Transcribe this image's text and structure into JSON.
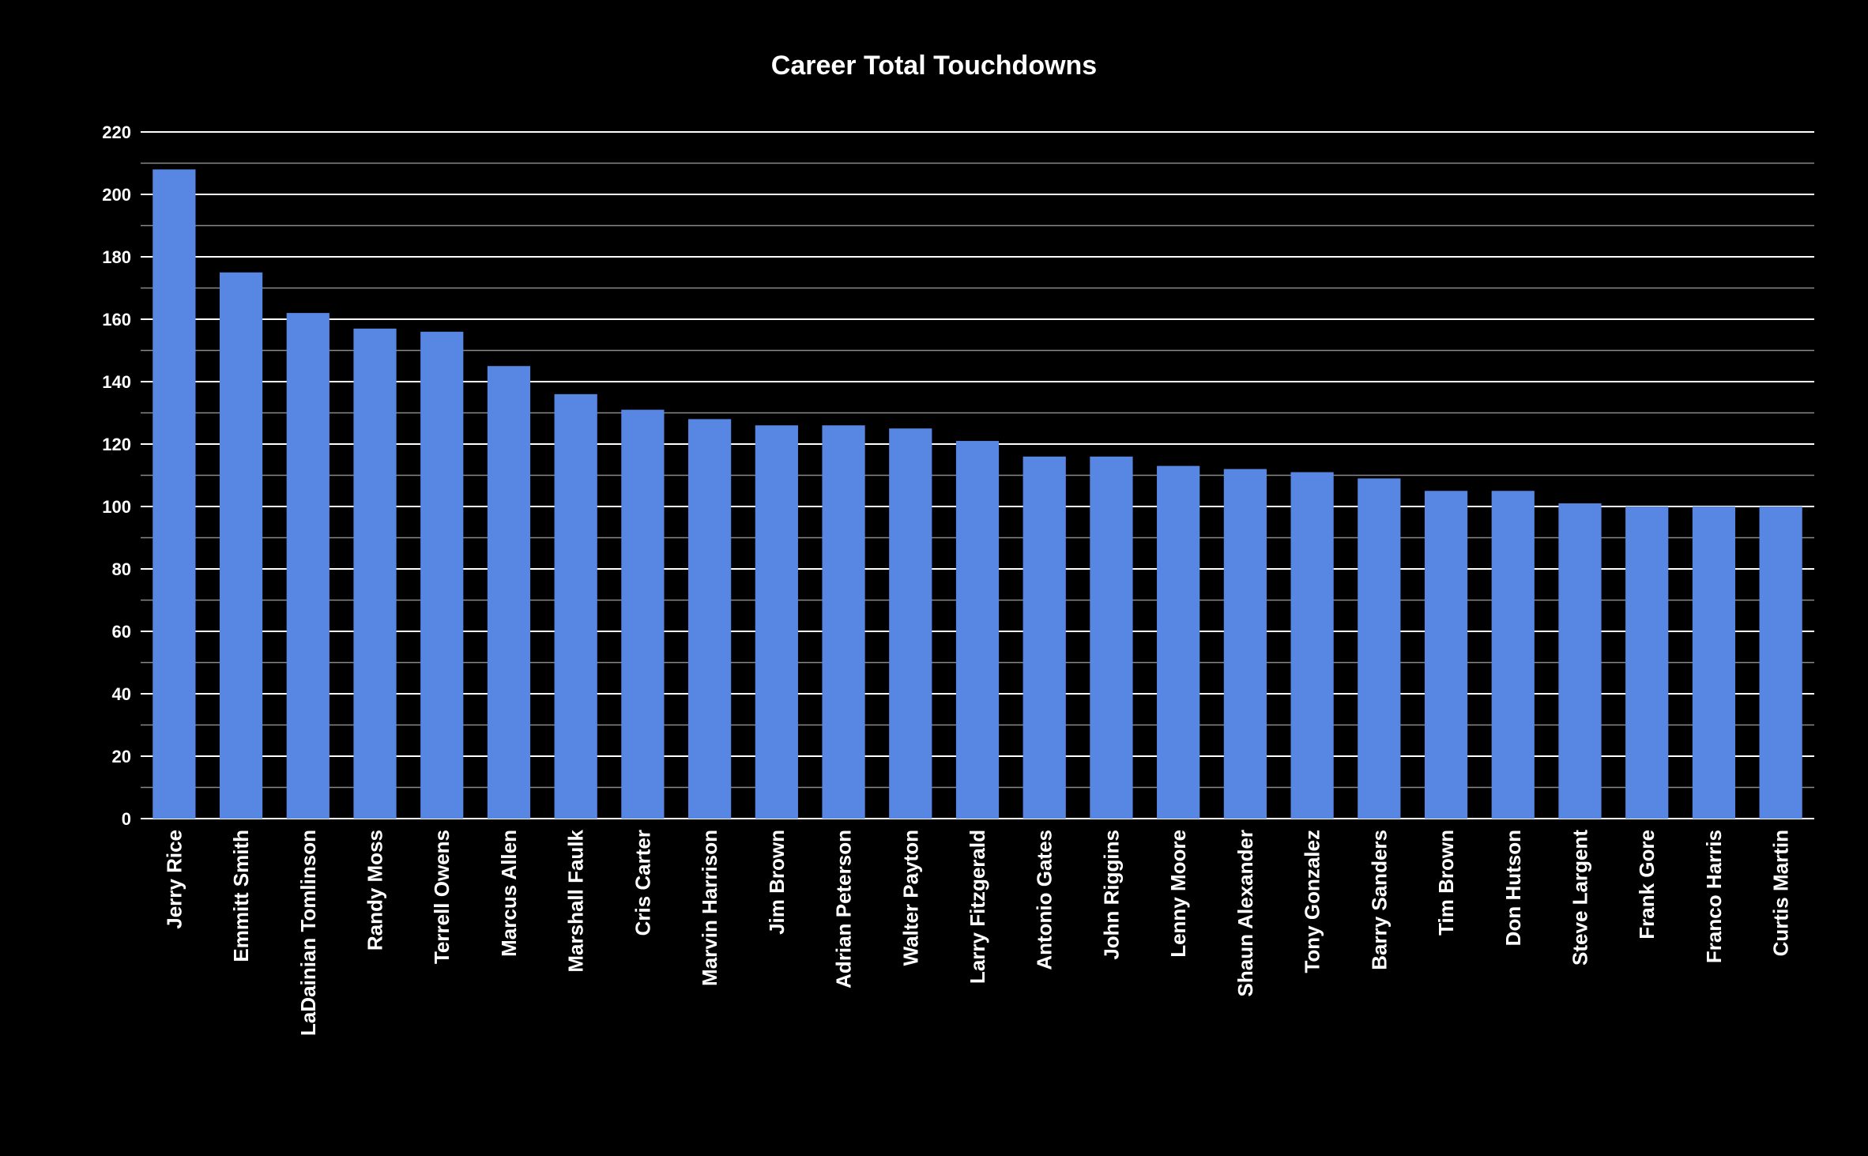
{
  "colors": {
    "background": "#000000",
    "bar": "#5886e3",
    "text": "#ffffff",
    "gridline_major": "#ffffff",
    "gridline_minor": "#8a8a8a"
  },
  "chart_data": {
    "type": "bar",
    "title": "Career Total Touchdowns",
    "xlabel": "",
    "ylabel": "",
    "ylim": [
      0,
      220
    ],
    "yticks": [
      0,
      20,
      40,
      60,
      80,
      100,
      120,
      140,
      160,
      180,
      200,
      220
    ],
    "grid": true,
    "legend": "none",
    "categories": [
      "Jerry Rice",
      "Emmitt Smith",
      "LaDainian Tomlinson",
      "Randy Moss",
      "Terrell Owens",
      "Marcus Allen",
      "Marshall Faulk",
      "Cris Carter",
      "Marvin Harrison",
      "Jim Brown",
      "Adrian Peterson",
      "Walter Payton",
      "Larry Fitzgerald",
      "Antonio Gates",
      "John Riggins",
      "Lenny Moore",
      "Shaun Alexander",
      "Tony Gonzalez",
      "Barry Sanders",
      "Tim Brown",
      "Don Hutson",
      "Steve Largent",
      "Frank Gore",
      "Franco Harris",
      "Curtis Martin"
    ],
    "values": [
      208,
      175,
      162,
      157,
      156,
      145,
      136,
      131,
      128,
      126,
      126,
      125,
      121,
      116,
      116,
      113,
      112,
      111,
      109,
      105,
      105,
      101,
      100,
      100,
      100
    ]
  }
}
